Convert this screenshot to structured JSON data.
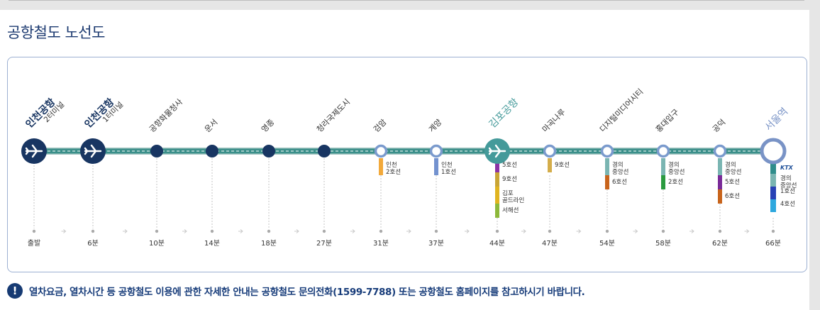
{
  "page_title": "공항철도 노선도",
  "notice": {
    "icon": "exclamation-icon",
    "text": "열차요금, 열차시간 등 공항철도 이용에 관한 자세한 안내는 공항철도 문의전화(1599-7788) 또는 공항철도 홈페이지를 참고하시기 바랍니다."
  },
  "colors": {
    "line_main": "#3b8f8a",
    "line_track": "#a8c8c4",
    "station_dark": "#183562",
    "station_ring": "#7a9acd",
    "gimpo": "#449a9a",
    "seoul_ring": "#7993c6"
  },
  "stations": [
    {
      "id": "incheon-airport-t2",
      "name": "인천공항",
      "sub": "2터미널",
      "time": "출발",
      "type": "airport",
      "transfers": []
    },
    {
      "id": "incheon-airport-t1",
      "name": "인천공항",
      "sub": "1터미널",
      "time": "6분",
      "type": "airport",
      "transfers": []
    },
    {
      "id": "cargo-office",
      "name": "공항화물청사",
      "time": "10분",
      "type": "dark",
      "transfers": []
    },
    {
      "id": "unseo",
      "name": "운서",
      "time": "14분",
      "type": "dark",
      "transfers": []
    },
    {
      "id": "yeongjong",
      "name": "영종",
      "time": "18분",
      "type": "dark",
      "transfers": []
    },
    {
      "id": "cheongna",
      "name": "청라국제도시",
      "time": "27분",
      "type": "dark",
      "transfers": []
    },
    {
      "id": "geomam",
      "name": "검암",
      "time": "31분",
      "type": "ring",
      "transfers": [
        {
          "label": "인천 2호선",
          "color": "#f2a93b"
        }
      ]
    },
    {
      "id": "gyeyang",
      "name": "계양",
      "time": "37분",
      "type": "ring",
      "transfers": [
        {
          "label": "인천 1호선",
          "color": "#7392cf"
        }
      ]
    },
    {
      "id": "gimpo-airport",
      "name": "김포공항",
      "time": "44분",
      "type": "gimpo",
      "transfers": [
        {
          "label": "5호선",
          "color": "#8a33a6"
        },
        {
          "label": "9호선",
          "color": "#c9a535"
        },
        {
          "label": "김포 골드라인",
          "color": "#e0b420"
        },
        {
          "label": "서해선",
          "color": "#8db83a"
        }
      ]
    },
    {
      "id": "magongnaru",
      "name": "마곡나루",
      "time": "47분",
      "type": "ring",
      "transfers": [
        {
          "label": "9호선",
          "color": "#d4ad4a"
        }
      ]
    },
    {
      "id": "dmc",
      "name": "디지털미디어시티",
      "time": "54분",
      "type": "ring",
      "transfers": [
        {
          "label": "경의 중앙선",
          "color": "#7ab5b2"
        },
        {
          "label": "6호선",
          "color": "#c8641c"
        }
      ]
    },
    {
      "id": "hongik",
      "name": "홍대입구",
      "time": "58분",
      "type": "ring",
      "transfers": [
        {
          "label": "경의 중앙선",
          "color": "#7ab5b2"
        },
        {
          "label": "2호선",
          "color": "#2a9a3f"
        }
      ]
    },
    {
      "id": "gongdeok",
      "name": "공덕",
      "time": "62분",
      "type": "ring",
      "transfers": [
        {
          "label": "경의 중앙선",
          "color": "#7ab5b2"
        },
        {
          "label": "5호선",
          "color": "#7a2a98"
        },
        {
          "label": "6호선",
          "color": "#c8641c"
        }
      ]
    },
    {
      "id": "seoul",
      "name": "서울역",
      "time": "66분",
      "type": "seoul",
      "transfers": [
        {
          "label": "KTX",
          "color": "#2f8d8b",
          "ktx": true
        },
        {
          "label": "경의 중앙선",
          "color": "#7ab5b2"
        },
        {
          "label": "1호선",
          "color": "#2841b5"
        },
        {
          "label": "4호선",
          "color": "#2ea8de"
        }
      ]
    }
  ]
}
